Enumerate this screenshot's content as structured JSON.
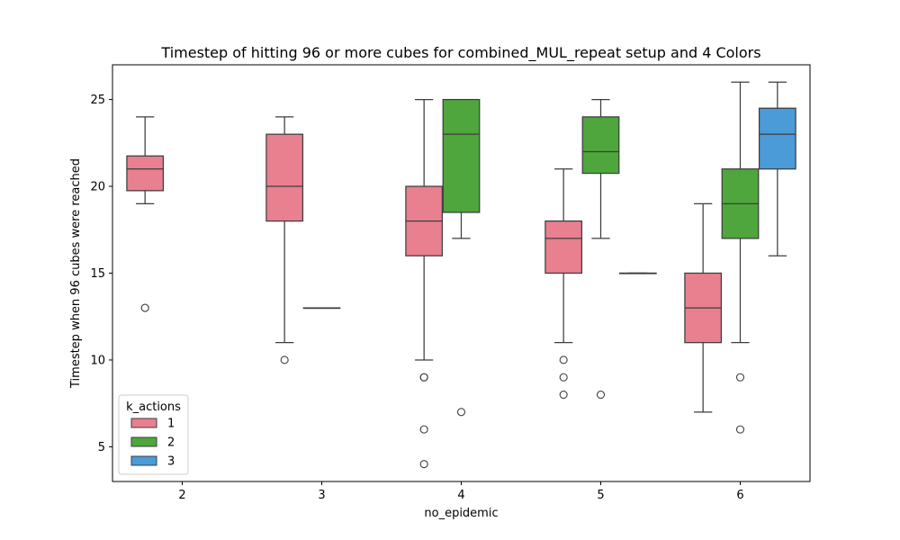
{
  "chart_data": {
    "type": "box",
    "title": "Timestep of hitting 96 or more cubes for combined_MUL_repeat setup and 4 Colors",
    "xlabel": "no_epidemic",
    "ylabel": "Timestep when 96 cubes were reached",
    "categories": [
      "2",
      "3",
      "4",
      "5",
      "6"
    ],
    "ylim": [
      3,
      27
    ],
    "yticks": [
      5,
      10,
      15,
      20,
      25
    ],
    "legend": {
      "title": "k_actions",
      "placement": "lower-left",
      "entries": [
        "1",
        "2",
        "3"
      ]
    },
    "colors": {
      "1": "#e8808f",
      "2": "#4ea63c",
      "3": "#4a9bd8"
    },
    "series": [
      {
        "name": "1",
        "boxes": [
          {
            "x": "2",
            "whislo": 19,
            "q1": 19.75,
            "med": 21,
            "q3": 21.75,
            "whishi": 24,
            "fliers": [
              13
            ]
          },
          {
            "x": "3",
            "whislo": 11,
            "q1": 18,
            "med": 20,
            "q3": 23,
            "whishi": 24,
            "fliers": [
              10
            ]
          },
          {
            "x": "4",
            "whislo": 10,
            "q1": 16,
            "med": 18,
            "q3": 20,
            "whishi": 25,
            "fliers": [
              9,
              9,
              6,
              4
            ]
          },
          {
            "x": "5",
            "whislo": 11,
            "q1": 15,
            "med": 17,
            "q3": 18,
            "whishi": 21,
            "fliers": [
              10,
              9,
              8
            ]
          },
          {
            "x": "6",
            "whislo": 7,
            "q1": 11,
            "med": 13,
            "q3": 15,
            "whishi": 19,
            "fliers": []
          }
        ]
      },
      {
        "name": "2",
        "boxes": [
          {
            "x": "3",
            "whislo": 13,
            "q1": 13,
            "med": 13,
            "q3": 13,
            "whishi": 13,
            "fliers": []
          },
          {
            "x": "4",
            "whislo": 17,
            "q1": 18.5,
            "med": 23,
            "q3": 25,
            "whishi": 25,
            "fliers": [
              7
            ]
          },
          {
            "x": "5",
            "whislo": 17,
            "q1": 20.75,
            "med": 22,
            "q3": 24,
            "whishi": 25,
            "fliers": [
              8
            ]
          },
          {
            "x": "6",
            "whislo": 11,
            "q1": 17,
            "med": 19,
            "q3": 21,
            "whishi": 26,
            "fliers": [
              9,
              6
            ]
          }
        ]
      },
      {
        "name": "3",
        "boxes": [
          {
            "x": "5",
            "whislo": 15,
            "q1": 15,
            "med": 15,
            "q3": 15,
            "whishi": 15,
            "fliers": []
          },
          {
            "x": "6",
            "whislo": 16,
            "q1": 21,
            "med": 23,
            "q3": 24.5,
            "whishi": 26,
            "fliers": []
          }
        ]
      }
    ]
  }
}
